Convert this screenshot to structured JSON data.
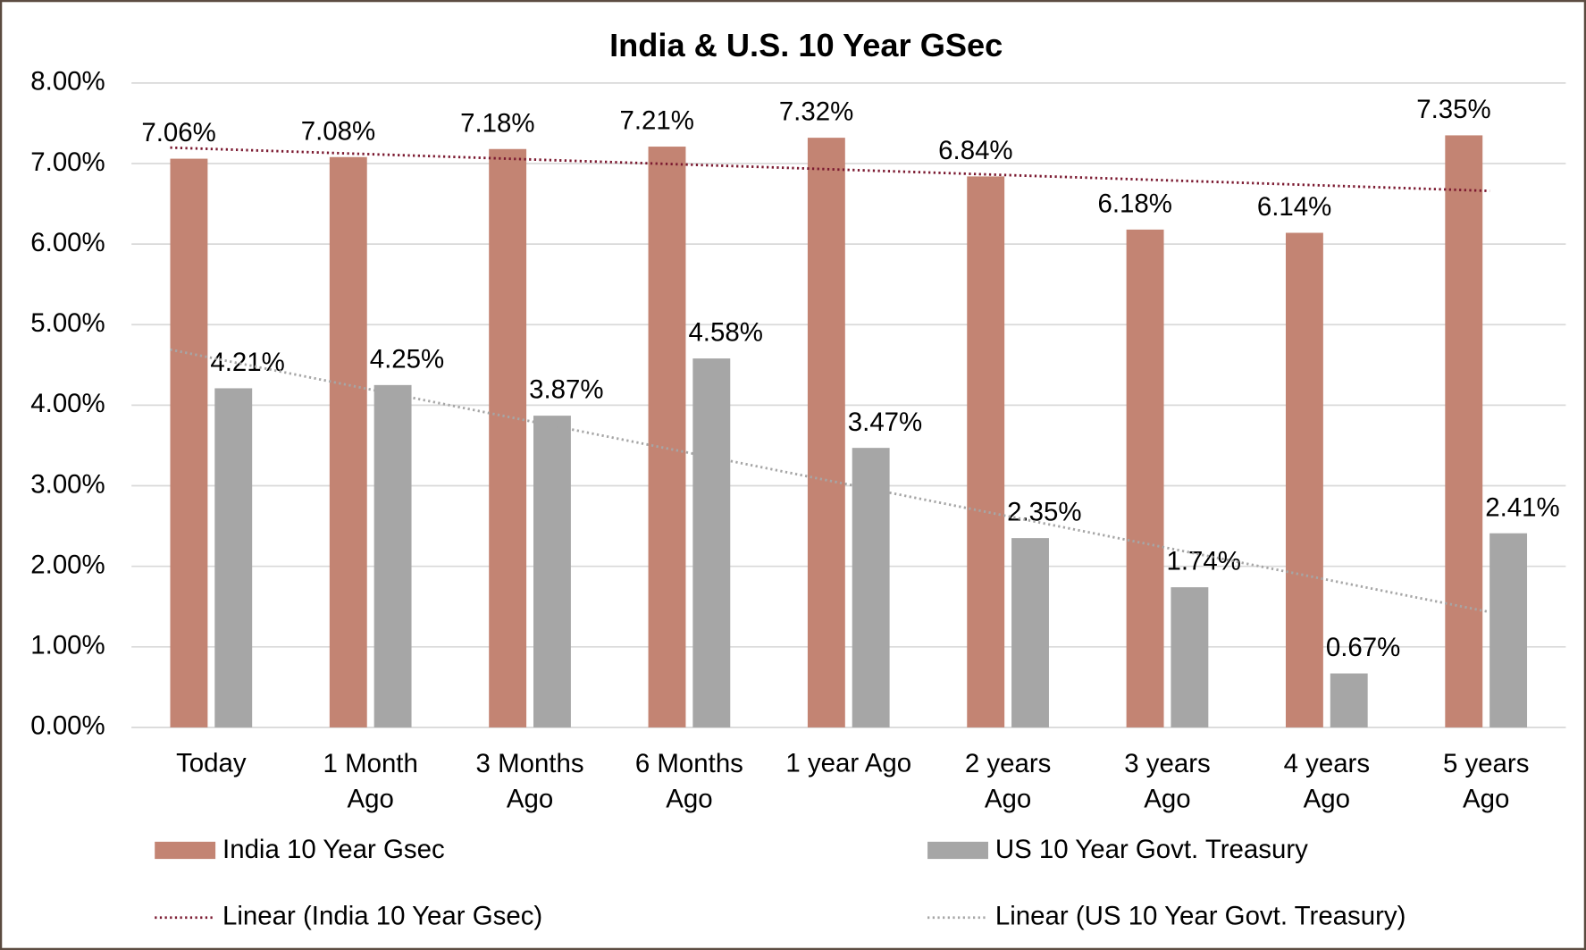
{
  "chart_data": {
    "type": "bar",
    "title": "India & U.S. 10 Year GSec",
    "categories": [
      "Today",
      "1 Month Ago",
      "3 Months Ago",
      "6 Months Ago",
      "1 year Ago",
      "2 years Ago",
      "3 years Ago",
      "4 years Ago",
      "5 years Ago"
    ],
    "series": [
      {
        "name": "India 10 Year Gsec",
        "color": "#c38473",
        "trendline_name": "Linear (India 10 Year Gsec)",
        "trendline_color": "#7b1930",
        "values": [
          7.06,
          7.08,
          7.18,
          7.21,
          7.32,
          6.84,
          6.18,
          6.14,
          7.35
        ],
        "value_labels": [
          "7.06%",
          "7.08%",
          "7.18%",
          "7.21%",
          "7.32%",
          "6.84%",
          "6.18%",
          "6.14%",
          "7.35%"
        ]
      },
      {
        "name": "US 10 Year Govt. Treasury",
        "color": "#a6a6a6",
        "trendline_name": "Linear (US 10 Year Govt. Treasury)",
        "trendline_color": "#a6a6a6",
        "values": [
          4.21,
          4.25,
          3.87,
          4.58,
          3.47,
          2.35,
          1.74,
          0.67,
          2.41
        ],
        "value_labels": [
          "4.21%",
          "4.25%",
          "3.87%",
          "4.58%",
          "3.47%",
          "2.35%",
          "1.74%",
          "0.67%",
          "2.41%"
        ]
      }
    ],
    "ylim": [
      0,
      8
    ],
    "yticks": [
      {
        "value": 0,
        "label": "0.00%"
      },
      {
        "value": 1,
        "label": "1.00%"
      },
      {
        "value": 2,
        "label": "2.00%"
      },
      {
        "value": 3,
        "label": "3.00%"
      },
      {
        "value": 4,
        "label": "4.00%"
      },
      {
        "value": 5,
        "label": "5.00%"
      },
      {
        "value": 6,
        "label": "6.00%"
      },
      {
        "value": 7,
        "label": "7.00%"
      },
      {
        "value": 8,
        "label": "8.00%"
      }
    ],
    "grid": true,
    "legend": "bottom"
  }
}
